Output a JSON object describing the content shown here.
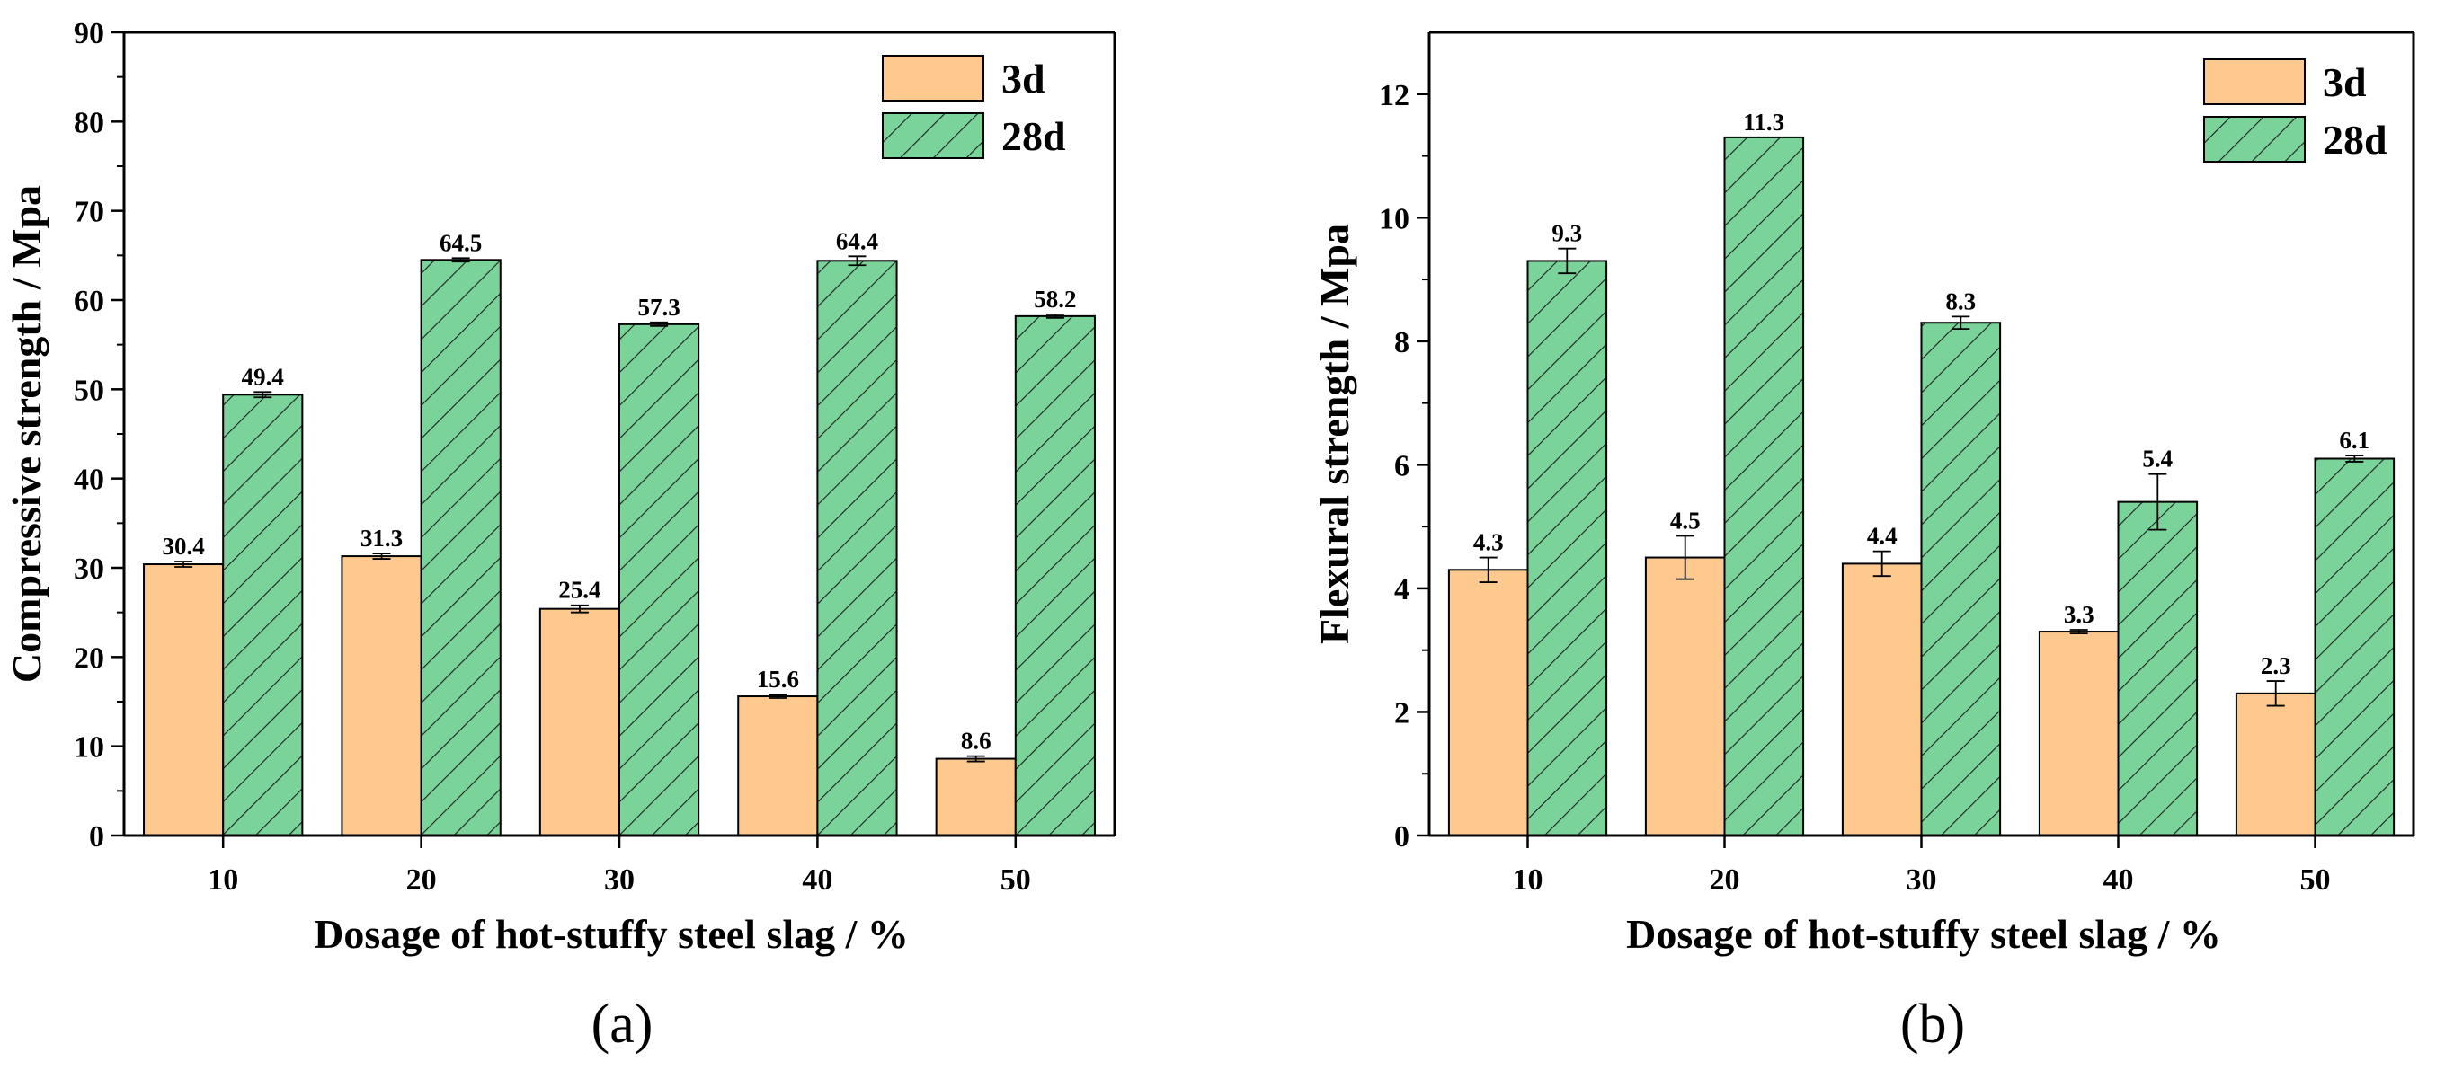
{
  "chart_data": [
    {
      "type": "bar",
      "panel_label": "(a)",
      "xlabel": "Dosage of hot-stuffy steel slag / %",
      "ylabel": "Compressive strength / Mpa",
      "categories": [
        "10",
        "20",
        "30",
        "40",
        "50"
      ],
      "ylim": [
        0,
        90
      ],
      "yticks": [
        0,
        10,
        20,
        30,
        40,
        50,
        60,
        70,
        80,
        90
      ],
      "series": [
        {
          "name": "3d",
          "values": [
            30.4,
            31.3,
            25.4,
            15.6,
            8.6
          ],
          "labels": [
            "30.4",
            "31.3",
            "25.4",
            "15.6",
            "8.6"
          ],
          "errors": [
            0.3,
            0.3,
            0.4,
            0.2,
            0.3
          ],
          "color": "#FDC98F",
          "pattern": "solid"
        },
        {
          "name": "28d",
          "values": [
            49.4,
            64.5,
            57.3,
            64.4,
            58.2
          ],
          "labels": [
            "49.4",
            "64.5",
            "57.3",
            "64.4",
            "58.2"
          ],
          "errors": [
            0.3,
            0.2,
            0.2,
            0.5,
            0.2
          ],
          "color": "#7AD49A",
          "pattern": "hatch"
        }
      ],
      "legend_position": "top-right",
      "grid": false
    },
    {
      "type": "bar",
      "panel_label": "(b)",
      "xlabel": "Dosage of hot-stuffy steel slag / %",
      "ylabel": "Flexural strength / Mpa",
      "categories": [
        "10",
        "20",
        "30",
        "40",
        "50"
      ],
      "ylim": [
        0,
        13
      ],
      "yticks": [
        0,
        2,
        4,
        6,
        8,
        10,
        12
      ],
      "series": [
        {
          "name": "3d",
          "values": [
            4.3,
            4.5,
            4.4,
            3.3,
            2.3
          ],
          "labels": [
            "4.3",
            "4.5",
            "4.4",
            "3.3",
            "2.3"
          ],
          "errors": [
            0.2,
            0.35,
            0.2,
            0.03,
            0.2
          ],
          "color": "#FDC98F",
          "pattern": "solid"
        },
        {
          "name": "28d",
          "values": [
            9.3,
            11.3,
            8.3,
            5.4,
            6.1
          ],
          "labels": [
            "9.3",
            "11.3",
            "8.3",
            "5.4",
            "6.1"
          ],
          "errors": [
            0.2,
            0.0,
            0.1,
            0.45,
            0.05
          ],
          "color": "#7AD49A",
          "pattern": "hatch"
        }
      ],
      "legend_position": "top-right",
      "grid": false
    }
  ]
}
